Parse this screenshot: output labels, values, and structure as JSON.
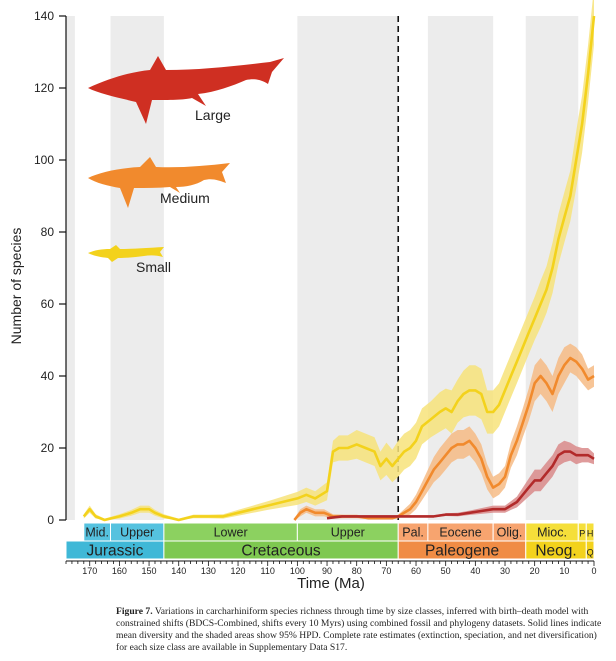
{
  "chart_data": {
    "type": "line",
    "ylabel": "Number of species",
    "xlabel": "Time (Ma)",
    "ylim": [
      0,
      140
    ],
    "xlim": [
      178,
      0
    ],
    "yticks": [
      0,
      20,
      40,
      60,
      80,
      100,
      120,
      140
    ],
    "xticks": [
      170,
      160,
      150,
      140,
      130,
      120,
      110,
      100,
      90,
      80,
      70,
      60,
      50,
      40,
      30,
      20,
      10,
      0
    ],
    "reference_line_ma": 66,
    "shaded_bands_ma": [
      [
        178,
        175
      ],
      [
        163,
        145
      ],
      [
        100,
        66
      ],
      [
        56,
        34
      ],
      [
        23,
        5.3
      ]
    ],
    "series": [
      {
        "name": "Small",
        "color": "#f3d21c",
        "band_color": "#f7e37a",
        "x": [
          172,
          170,
          168,
          165,
          160,
          156,
          153,
          150,
          148,
          145,
          140,
          135,
          130,
          125,
          120,
          115,
          110,
          105,
          100,
          97,
          94,
          90,
          88,
          86,
          83,
          80,
          77,
          74,
          72,
          70,
          68,
          66,
          64,
          62,
          60,
          58,
          55,
          52,
          50,
          48,
          46,
          44,
          42,
          40,
          38,
          36,
          34,
          32,
          30,
          28,
          26,
          24,
          22,
          20,
          18,
          16,
          14,
          12,
          10,
          8,
          6,
          4,
          2,
          0
        ],
        "y": [
          1,
          3,
          1,
          0,
          1,
          2,
          3,
          3,
          2,
          1,
          0,
          1,
          1,
          1,
          2,
          3,
          4,
          5,
          6,
          7,
          6,
          8,
          19,
          20,
          20,
          21,
          20,
          19,
          15,
          17,
          15,
          17,
          19,
          20,
          22,
          26,
          28,
          30,
          31,
          30,
          33,
          35,
          36,
          36,
          35,
          30,
          30,
          32,
          36,
          40,
          44,
          48,
          52,
          56,
          60,
          64,
          70,
          78,
          84,
          90,
          100,
          110,
          124,
          140
        ],
        "band": [
          0.6,
          1,
          0.6,
          0.4,
          0.6,
          0.8,
          1,
          1,
          0.8,
          0.6,
          0.4,
          0.5,
          0.5,
          0.6,
          0.8,
          1,
          1.2,
          1.5,
          1.8,
          2,
          2,
          2.5,
          3,
          3.5,
          3.5,
          4,
          4,
          4,
          4,
          4.5,
          4.5,
          5,
          5,
          5,
          5,
          5,
          5,
          5.5,
          5.5,
          6,
          6,
          6.5,
          7,
          7,
          7,
          6,
          6,
          6,
          6,
          6,
          6,
          6,
          6,
          6,
          6.5,
          6.5,
          7,
          7,
          7,
          7,
          8,
          8,
          8,
          8
        ]
      },
      {
        "name": "Medium",
        "color": "#f18a2d",
        "band_color": "#f6bb85",
        "x": [
          101,
          99,
          97,
          94,
          91,
          88,
          84,
          80,
          76,
          72,
          68,
          66,
          64,
          62,
          60,
          58,
          56,
          54,
          52,
          50,
          48,
          46,
          44,
          42,
          40,
          38,
          36,
          34,
          32,
          30,
          28,
          26,
          24,
          22,
          20,
          18,
          16,
          14,
          12,
          10,
          8,
          6,
          4,
          2,
          0
        ],
        "y": [
          0,
          2,
          3,
          2,
          2,
          1,
          1,
          1,
          0.5,
          0.5,
          0.5,
          1,
          2,
          3,
          5,
          8,
          11,
          14,
          16,
          18,
          20,
          21,
          21,
          22,
          20,
          17,
          12,
          9,
          10,
          12,
          18,
          22,
          27,
          32,
          38,
          40,
          38,
          35,
          40,
          43,
          45,
          44,
          42,
          39,
          40
        ],
        "band": [
          0.5,
          1,
          1,
          1,
          1,
          0.6,
          0.5,
          0.5,
          0.3,
          0.3,
          0.3,
          0.5,
          1,
          1.5,
          2,
          2.5,
          3,
          3.5,
          4,
          4,
          4,
          4,
          4,
          4,
          4,
          4,
          3.5,
          3,
          3,
          3,
          3.5,
          4,
          4,
          4.5,
          5,
          5,
          5,
          5,
          5,
          5,
          4,
          4,
          4,
          3,
          3
        ]
      },
      {
        "name": "Large",
        "color": "#b22a2a",
        "band_color": "#d98a8a",
        "x": [
          90,
          85,
          80,
          75,
          70,
          66,
          62,
          58,
          54,
          50,
          46,
          42,
          38,
          34,
          30,
          28,
          26,
          24,
          22,
          20,
          18,
          16,
          14,
          12,
          10,
          8,
          6,
          4,
          2,
          0
        ],
        "y": [
          0.5,
          1,
          1,
          1,
          1,
          1,
          1,
          1,
          1,
          1.5,
          1.5,
          2,
          2.5,
          3,
          3,
          4,
          5,
          7,
          9,
          11,
          11,
          13,
          15,
          18,
          19,
          19,
          18,
          18,
          18,
          17
        ],
        "band": [
          0.2,
          0.3,
          0.3,
          0.3,
          0.3,
          0.3,
          0.3,
          0.3,
          0.3,
          0.4,
          0.5,
          0.6,
          0.8,
          1,
          1,
          1.2,
          1.5,
          2,
          2.5,
          3,
          3,
          3,
          3,
          3,
          3,
          2.5,
          2.5,
          2,
          2,
          1.5
        ]
      }
    ],
    "shark_labels": [
      "Large",
      "Medium",
      "Small"
    ]
  },
  "timescale": {
    "epochs": [
      {
        "label": "Mid.",
        "from": 172,
        "to": 163,
        "color": "#55c2df"
      },
      {
        "label": "Upper",
        "from": 163,
        "to": 145,
        "color": "#55c2df"
      },
      {
        "label": "Lower",
        "from": 145,
        "to": 100,
        "color": "#8cd160"
      },
      {
        "label": "Upper",
        "from": 100,
        "to": 66,
        "color": "#8cd160"
      },
      {
        "label": "Pal.",
        "from": 66,
        "to": 56,
        "color": "#f7a46f"
      },
      {
        "label": "Eocene",
        "from": 56,
        "to": 34,
        "color": "#f7a46f"
      },
      {
        "label": "Olig.",
        "from": 34,
        "to": 23,
        "color": "#f7a46f"
      },
      {
        "label": "Mioc.",
        "from": 23,
        "to": 5.3,
        "color": "#f5df3a"
      },
      {
        "label": "P",
        "from": 5.3,
        "to": 2.6,
        "color": "#f5df3a"
      },
      {
        "label": "H",
        "from": 2.6,
        "to": 0,
        "color": "#f5df3a"
      }
    ],
    "periods": [
      {
        "label": "Jurassic",
        "from": 178,
        "to": 145,
        "color": "#3fb8d7"
      },
      {
        "label": "Cretaceous",
        "from": 145,
        "to": 66,
        "color": "#7ec850"
      },
      {
        "label": "Paleogene",
        "from": 66,
        "to": 23,
        "color": "#f08c45"
      },
      {
        "label": "Neog.",
        "from": 23,
        "to": 2.6,
        "color": "#f3d21c"
      },
      {
        "label": "Q",
        "from": 2.6,
        "to": 0,
        "color": "#f3d21c"
      }
    ]
  },
  "caption": {
    "figure_label": "Figure 7.",
    "text": "  Variations in carcharhiniform species richness through time by size classes, inferred with birth–death model with constrained shifts (BDCS-Combined, shifts every 10 Myrs) using combined fossil and phylogeny datasets. Solid lines indicate mean diversity and the shaded areas show 95% HPD. Complete rate estimates (extinction, speciation, and net diversification) for each size class are available in Supplementary Data S17."
  }
}
